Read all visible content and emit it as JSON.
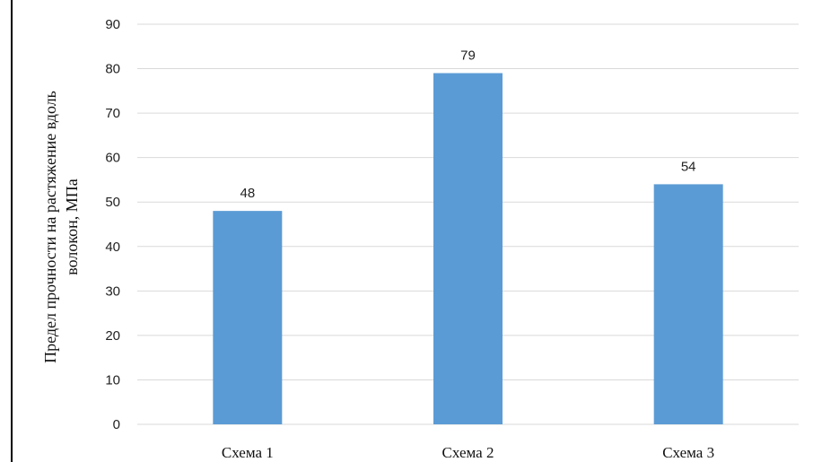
{
  "chart_data": {
    "type": "bar",
    "categories": [
      "Схема 1",
      "Схема 2",
      "Схема 3"
    ],
    "values": [
      48,
      79,
      54
    ],
    "data_labels": [
      "48",
      "79",
      "54"
    ],
    "title": "",
    "xlabel": "",
    "ylabel_lines": [
      "Предел прочности на растяжение вдоль",
      "волокон, МПа"
    ],
    "ylim": [
      0,
      90
    ],
    "yticks": [
      0,
      10,
      20,
      30,
      40,
      50,
      60,
      70,
      80,
      90
    ],
    "grid": true,
    "legend": "none",
    "bar_color": "#5b9bd5",
    "grid_color": "#d9d9d9"
  }
}
